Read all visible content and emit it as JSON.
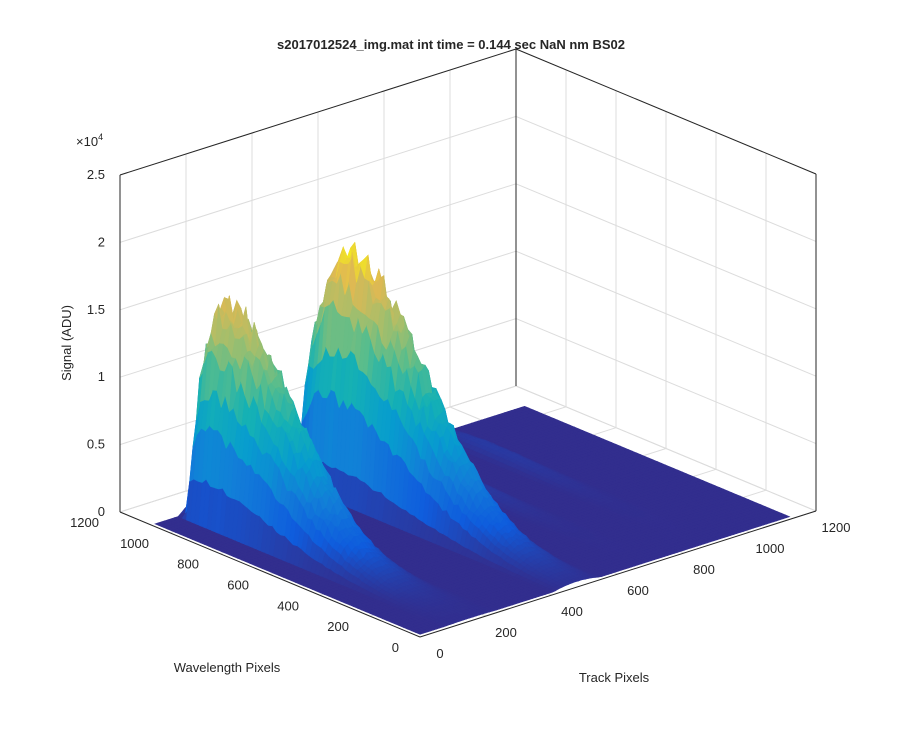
{
  "chart_data": {
    "type": "surface",
    "title": "s2017012524_img.mat int time = 0.144 sec  NaN nm BS02",
    "xlabel": "Track Pixels",
    "ylabel": "Wavelength Pixels",
    "zlabel": "Signal (ADU)",
    "z_exponent_label": "×10",
    "z_exponent_power": "4",
    "xlim": [
      0,
      1200
    ],
    "ylim": [
      0,
      1200
    ],
    "zlim": [
      0,
      25000
    ],
    "x_ticks": [
      0,
      200,
      400,
      600,
      800,
      1000,
      1200
    ],
    "x_tick_labels": [
      "0",
      "200",
      "400",
      "600",
      "800",
      "1000",
      "1200"
    ],
    "y_ticks": [
      0,
      200,
      400,
      600,
      800,
      1000,
      1200
    ],
    "y_tick_labels": [
      "0",
      "200",
      "400",
      "600",
      "800",
      "1000",
      "1200"
    ],
    "z_ticks": [
      0,
      5000,
      10000,
      15000,
      20000,
      25000
    ],
    "z_tick_labels": [
      "0",
      "0.5",
      "1",
      "1.5",
      "2",
      "2.5"
    ],
    "grid": true,
    "colormap": "parula",
    "surface_extent": {
      "x": [
        0,
        1120
      ],
      "y": [
        0,
        1060
      ]
    },
    "peaks": [
      {
        "name": "track-peak-1",
        "x_center": 150,
        "x_width": 150,
        "peak_signal": 17000,
        "y_peak": 980,
        "y_falloff": 180
      },
      {
        "name": "track-peak-2",
        "x_center": 475,
        "x_width": 135,
        "peak_signal": 19000,
        "y_peak": 920,
        "y_falloff": 200
      },
      {
        "name": "track-peak-3",
        "x_center": 690,
        "x_width": 70,
        "peak_signal": 900,
        "y_peak": 880,
        "y_falloff": 150
      },
      {
        "name": "track-peak-4",
        "x_center": 870,
        "x_width": 70,
        "peak_signal": 600,
        "y_peak": 880,
        "y_falloff": 150
      }
    ],
    "baseline_signal": 200
  }
}
